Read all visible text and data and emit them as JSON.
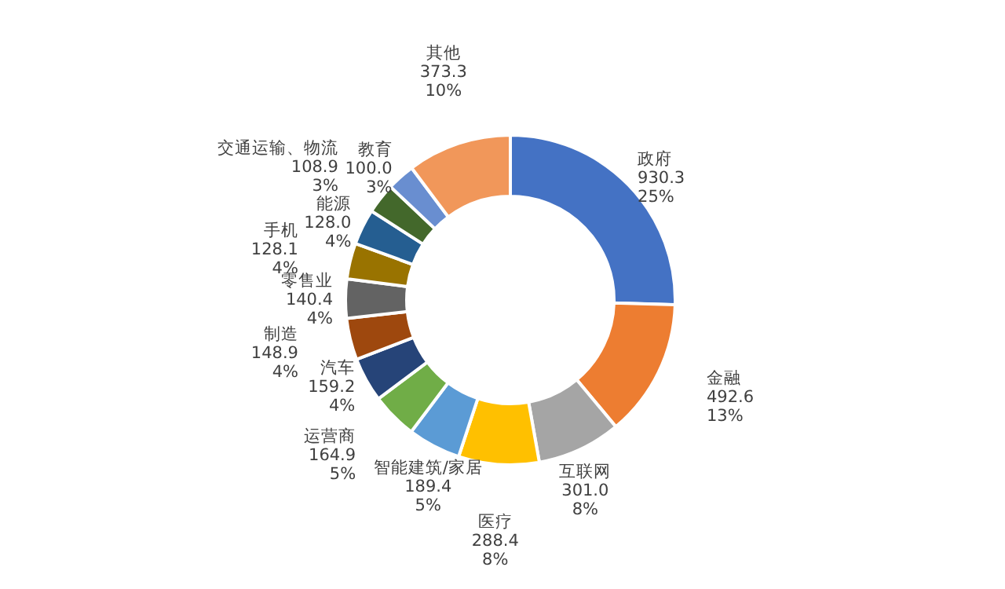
{
  "chart_data": {
    "type": "donut",
    "categories": [
      "政府",
      "金融",
      "互联网",
      "医疗",
      "智能建筑/家居",
      "运营商",
      "汽车",
      "制造",
      "零售业",
      "手机",
      "能源",
      "交通运输、物流",
      "教育",
      "其他"
    ],
    "values": [
      930.3,
      492.6,
      301.0,
      288.4,
      189.4,
      164.9,
      159.2,
      148.9,
      140.4,
      128.1,
      128.0,
      108.9,
      100.0,
      373.3
    ],
    "colors": [
      "#4472c4",
      "#ed7d31",
      "#a5a5a5",
      "#ffc000",
      "#5b9bd5",
      "#70ad47",
      "#264478",
      "#9e480e",
      "#636363",
      "#997300",
      "#255e91",
      "#43682b",
      "#698ed0",
      "#f1975a"
    ],
    "value_labels": [
      "930.3\n25%",
      "492.6\n13%",
      "301.0\n8%",
      "288.4\n8%",
      "189.4\n5%",
      "164.9\n5%",
      "159.2\n4%",
      "148.9\n4%",
      "140.4\n4%",
      "128.1\n4%",
      "128.0\n4%",
      "108.9\n3%",
      "100.0\n3%",
      "373.3\n10%"
    ],
    "legend": false
  }
}
